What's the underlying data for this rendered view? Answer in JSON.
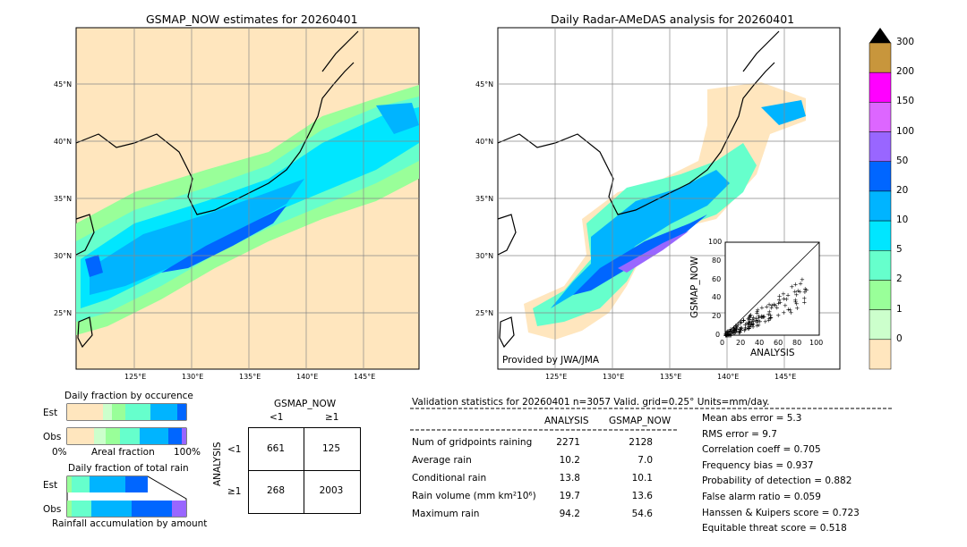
{
  "left_map": {
    "title": "GSMAP_NOW estimates for 20260401",
    "lat_labels": [
      "45°N",
      "40°N",
      "35°N",
      "30°N",
      "25°N"
    ],
    "lon_labels": [
      "125°E",
      "130°E",
      "135°E",
      "140°E",
      "145°E"
    ]
  },
  "right_map": {
    "title": "Daily Radar-AMeDAS analysis for 20260401",
    "lat_labels": [
      "45°N",
      "40°N",
      "35°N",
      "30°N",
      "25°N"
    ],
    "lon_labels": [
      "125°E",
      "130°E",
      "135°E",
      "140°E",
      "145°E"
    ],
    "credit": "Provided by JWA/JMA"
  },
  "colorbar": {
    "labels": [
      "300",
      "200",
      "150",
      "100",
      "50",
      "20",
      "10",
      "5",
      "2",
      "1",
      "0"
    ],
    "colors": [
      "#c8963c",
      "#ff00ff",
      "#dd66ff",
      "#9966ff",
      "#0066ff",
      "#00b4ff",
      "#00e6ff",
      "#66ffcc",
      "#99ff99",
      "#ccffcc",
      "#ffe6be"
    ]
  },
  "scatter": {
    "ylabel": "GSMAP_NOW",
    "xlabel": "ANALYSIS",
    "ticks": [
      "0",
      "20",
      "40",
      "60",
      "80",
      "100"
    ]
  },
  "fraction_occurrence": {
    "title": "Daily fraction by occurence",
    "rows": [
      "Est",
      "Obs"
    ],
    "axis_left": "0%",
    "axis_mid": "Areal fraction",
    "axis_right": "100%"
  },
  "fraction_total": {
    "title": "Daily fraction of total rain",
    "rows": [
      "Est",
      "Obs"
    ],
    "footer": "Rainfall accumulation by amount"
  },
  "contingency": {
    "top_label": "GSMAP_NOW",
    "col_labels": [
      "<1",
      "≥1"
    ],
    "row_axis": "ANALYSIS",
    "row_labels": [
      "<1",
      "≥1"
    ],
    "values": [
      [
        "661",
        "125"
      ],
      [
        "268",
        "2003"
      ]
    ]
  },
  "validation": {
    "header": "Validation statistics for 20260401  n=3057 Valid. grid=0.25° Units=mm/day.",
    "col_analysis": "ANALYSIS",
    "col_gsmap": "GSMAP_NOW",
    "rows": [
      {
        "label": "Num of gridpoints raining",
        "analysis": "2271",
        "gsmap": "2128"
      },
      {
        "label": "Average rain",
        "analysis": "10.2",
        "gsmap": "7.0"
      },
      {
        "label": "Conditional rain",
        "analysis": "13.8",
        "gsmap": "10.1"
      },
      {
        "label": "Rain volume (mm km²10⁶)",
        "analysis": "19.7",
        "gsmap": "13.6"
      },
      {
        "label": "Maximum rain",
        "analysis": "94.2",
        "gsmap": "54.6"
      }
    ],
    "scores": [
      "Mean abs error =    5.3",
      "RMS error =    9.7",
      "Correlation coeff =  0.705",
      "Frequency bias =  0.937",
      "Probability of detection =  0.882",
      "False alarm ratio =  0.059",
      "Hanssen & Kuipers score =  0.723",
      "Equitable threat score =  0.518"
    ]
  }
}
